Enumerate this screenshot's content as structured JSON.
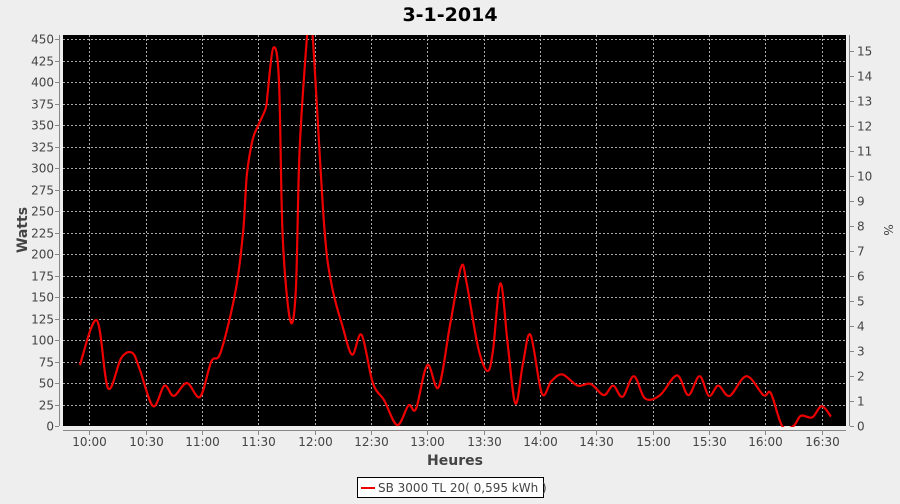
{
  "chart_data": {
    "type": "line",
    "title": "3-1-2014",
    "xlabel": "Heures",
    "ylabel": "Watts",
    "ylabel_right": "%",
    "xlim": [
      "09:46",
      "16:43"
    ],
    "ylim": [
      0,
      455
    ],
    "ylim_right": [
      0,
      15.64
    ],
    "grid": true,
    "background": "#000000",
    "legend_position": "bottom",
    "x_ticks": [
      "10:00",
      "10:30",
      "11:00",
      "11:30",
      "12:00",
      "12:30",
      "13:00",
      "13:30",
      "14:00",
      "14:30",
      "15:00",
      "15:30",
      "16:00",
      "16:30"
    ],
    "y_ticks": [
      0,
      25,
      50,
      75,
      100,
      125,
      150,
      175,
      200,
      225,
      250,
      275,
      300,
      325,
      350,
      375,
      400,
      425,
      450
    ],
    "y_ticks_right": [
      0,
      1,
      2,
      3,
      4,
      5,
      6,
      7,
      8,
      9,
      10,
      11,
      12,
      13,
      14,
      15
    ],
    "series": [
      {
        "name": "SB 3000 TL 20( 0,595 kWh )",
        "color": "#ee0000",
        "points": [
          [
            "09:55",
            71
          ],
          [
            "10:04",
            123
          ],
          [
            "10:10",
            44
          ],
          [
            "10:17",
            79
          ],
          [
            "10:23",
            85
          ],
          [
            "10:27",
            65
          ],
          [
            "10:34",
            23
          ],
          [
            "10:40",
            47
          ],
          [
            "10:45",
            35
          ],
          [
            "10:52",
            50
          ],
          [
            "10:59",
            34
          ],
          [
            "11:05",
            75
          ],
          [
            "11:10",
            86
          ],
          [
            "11:18",
            158
          ],
          [
            "11:22",
            228
          ],
          [
            "11:24",
            294
          ],
          [
            "11:27",
            333
          ],
          [
            "11:30",
            350
          ],
          [
            "11:34",
            370
          ],
          [
            "11:35",
            388
          ],
          [
            "11:38",
            440
          ],
          [
            "11:41",
            403
          ],
          [
            "11:43",
            220
          ],
          [
            "11:47",
            123
          ],
          [
            "11:50",
            158
          ],
          [
            "11:52",
            321
          ],
          [
            "11:56",
            455
          ],
          [
            "11:57",
            470
          ],
          [
            "11:59",
            453
          ],
          [
            "12:05",
            236
          ],
          [
            "12:09",
            165
          ],
          [
            "12:15",
            115
          ],
          [
            "12:20",
            83
          ],
          [
            "12:25",
            106
          ],
          [
            "12:31",
            50
          ],
          [
            "12:37",
            30
          ],
          [
            "12:44",
            1
          ],
          [
            "12:50",
            24
          ],
          [
            "12:54",
            20
          ],
          [
            "13:00",
            71
          ],
          [
            "13:06",
            45
          ],
          [
            "13:12",
            116
          ],
          [
            "13:18",
            185
          ],
          [
            "13:21",
            166
          ],
          [
            "13:27",
            92
          ],
          [
            "13:32",
            64
          ],
          [
            "13:35",
            88
          ],
          [
            "13:39",
            166
          ],
          [
            "13:43",
            92
          ],
          [
            "13:47",
            26
          ],
          [
            "13:51",
            73
          ],
          [
            "13:55",
            106
          ],
          [
            "14:01",
            38
          ],
          [
            "14:06",
            52
          ],
          [
            "14:12",
            60
          ],
          [
            "14:20",
            47
          ],
          [
            "14:27",
            49
          ],
          [
            "14:34",
            36
          ],
          [
            "14:39",
            47
          ],
          [
            "14:44",
            34
          ],
          [
            "14:50",
            58
          ],
          [
            "14:56",
            32
          ],
          [
            "15:04",
            36
          ],
          [
            "15:13",
            59
          ],
          [
            "15:19",
            36
          ],
          [
            "15:25",
            58
          ],
          [
            "15:30",
            35
          ],
          [
            "15:35",
            47
          ],
          [
            "15:41",
            35
          ],
          [
            "15:50",
            58
          ],
          [
            "15:59",
            36
          ],
          [
            "16:03",
            38
          ],
          [
            "16:09",
            0
          ],
          [
            "16:15",
            0
          ],
          [
            "16:19",
            12
          ],
          [
            "16:25",
            10
          ],
          [
            "16:30",
            23
          ],
          [
            "16:35",
            11
          ]
        ]
      }
    ]
  }
}
